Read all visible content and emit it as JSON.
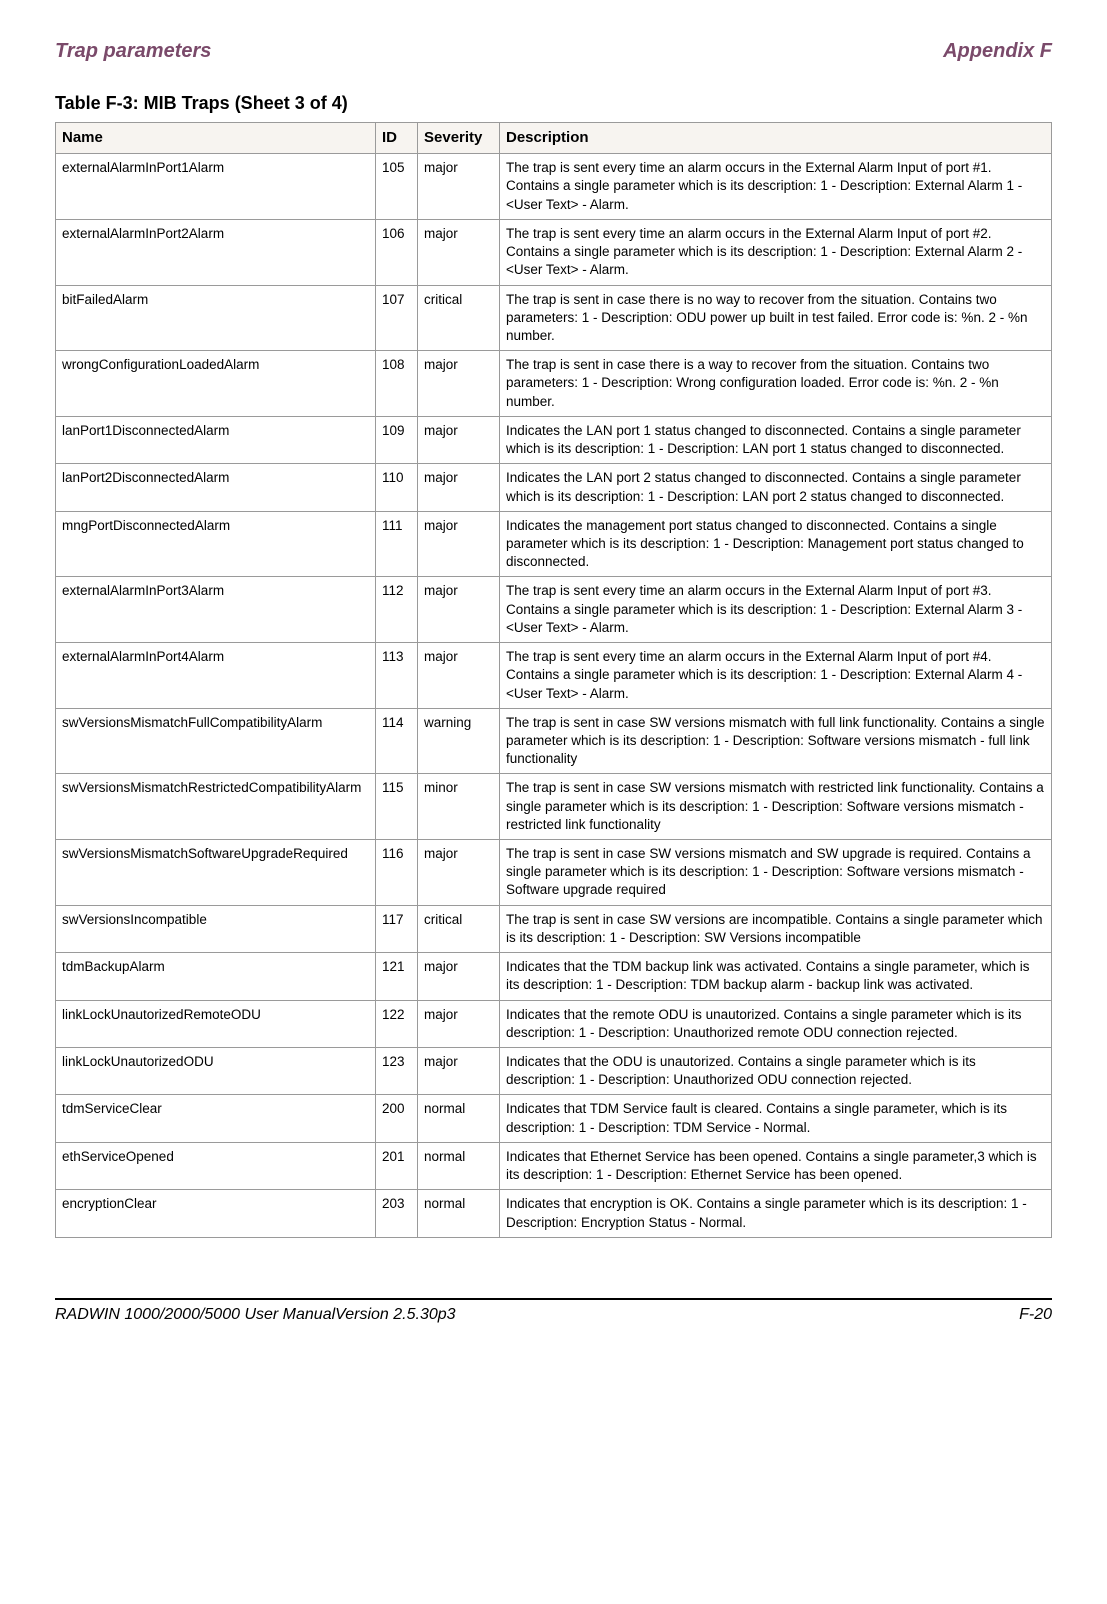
{
  "header": {
    "left": "Trap parameters",
    "right": "Appendix F"
  },
  "table": {
    "title": "Table F-3: MIB Traps (Sheet 3 of 4)",
    "columns": [
      "Name",
      "ID",
      "Severity",
      "Description"
    ],
    "rows": [
      [
        "externalAlarmInPort1Alarm",
        "105",
        "major",
        "The trap is sent every time an alarm occurs in the External Alarm Input of port #1. Contains a single parameter which is its description: 1 - Description: External Alarm 1 - <User Text> - Alarm."
      ],
      [
        "externalAlarmInPort2Alarm",
        "106",
        "major",
        "The trap is sent every time an alarm occurs in the External Alarm Input of port #2. Contains a single parameter which is its description: 1 - Description: External Alarm 2 - <User Text> - Alarm."
      ],
      [
        "bitFailedAlarm",
        "107",
        "critical",
        "The trap is sent in case there is no way to recover from the situation. Contains two parameters: 1 - Description: ODU power up built in test failed. Error code is: %n. 2 - %n number."
      ],
      [
        "wrongConfigurationLoadedAlarm",
        "108",
        "major",
        "The trap is sent in case there is a way to recover from the situation. Contains two parameters: 1 - Description: Wrong configuration loaded. Error code is: %n. 2 - %n number."
      ],
      [
        "lanPort1DisconnectedAlarm",
        "109",
        "major",
        "Indicates the LAN port 1 status changed to disconnected. Contains a single parameter which is its description: 1 - Description: LAN port 1 status changed to disconnected."
      ],
      [
        "lanPort2DisconnectedAlarm",
        "110",
        "major",
        "Indicates the LAN port 2 status changed to disconnected. Contains a single parameter which is its description: 1 - Description: LAN port 2 status changed to disconnected."
      ],
      [
        "mngPortDisconnectedAlarm",
        "111",
        "major",
        "Indicates the management port status changed to disconnected. Contains a single parameter which is its description: 1 - Description: Management port status changed to disconnected."
      ],
      [
        "externalAlarmInPort3Alarm",
        "112",
        "major",
        "The trap is sent every time an alarm occurs in the External Alarm Input of port #3. Contains a single parameter which is its description: 1 - Description: External Alarm 3 - <User Text> - Alarm."
      ],
      [
        "externalAlarmInPort4Alarm",
        "113",
        "major",
        "The trap is sent every time an alarm occurs in the External Alarm Input of port #4. Contains a single parameter which is its description: 1 - Description: External Alarm 4 - <User Text> - Alarm."
      ],
      [
        "swVersionsMismatchFullCompatibilityAlarm",
        "114",
        "warning",
        "The trap is sent in case SW versions mismatch with full link functionality. Contains a single parameter which is its description: 1 - Description: Software versions mismatch - full link functionality"
      ],
      [
        "swVersionsMismatchRestrictedCompatibilityAlarm",
        "115",
        "minor",
        "The trap is sent in case SW versions mismatch with restricted link functionality. Contains a single parameter which is its description: 1 - Description: Software versions mismatch - restricted link functionality"
      ],
      [
        "swVersionsMismatchSoftwareUpgradeRequired",
        "116",
        "major",
        "The trap is sent in case SW versions mismatch and SW upgrade is required. Contains a single parameter which is its description: 1 - Description: Software versions mismatch - Software upgrade required"
      ],
      [
        "swVersionsIncompatible",
        "117",
        "critical",
        "The trap is sent in case SW versions are incompatible. Contains a single parameter which is its description: 1 - Description: SW Versions incompatible"
      ],
      [
        "tdmBackupAlarm",
        "121",
        "major",
        "Indicates that the TDM backup link was activated. Contains a single parameter, which is its description: 1 - Description: TDM backup alarm - backup link was activated."
      ],
      [
        "linkLockUnautorizedRemoteODU",
        "122",
        "major",
        " Indicates that the remote ODU is unautorized.  Contains a single parameter which is its description:   1 - Description: Unauthorized remote ODU connection rejected."
      ],
      [
        "linkLockUnautorizedODU",
        "123",
        "major",
        "Indicates that the ODU is unautorized.    Contains a single parameter which is its description:   1 - Description: Unauthorized ODU connection rejected."
      ],
      [
        "tdmServiceClear",
        "200",
        "normal",
        "Indicates that TDM Service fault is cleared. Contains a single parameter, which is its description: 1 - Description: TDM Service - Normal."
      ],
      [
        "ethServiceOpened",
        "201",
        "normal",
        "Indicates that Ethernet Service has been opened. Contains a single parameter,3 which is its description: 1 - Description: Ethernet Service has been opened."
      ],
      [
        "encryptionClear",
        "203",
        "normal",
        "Indicates that encryption is OK. Contains a single parameter which is its description: 1 - Description: Encryption Status - Normal."
      ]
    ]
  },
  "footer": {
    "left": "RADWIN 1000/2000/5000 User ManualVersion  2.5.30p3",
    "right": "F-20"
  }
}
